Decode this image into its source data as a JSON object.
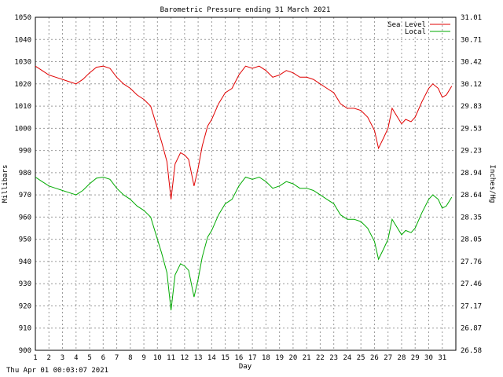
{
  "footer_timestamp": "Thu Apr 01 00:03:07 2021",
  "chart_data": {
    "type": "line",
    "title": "Barometric Pressure ending 31 March 2021",
    "xlabel": "Day",
    "ylabel_left": "Millibars",
    "ylabel_right": "Inches/Hg",
    "x_ticks": [
      "1",
      "2",
      "3",
      "4",
      "5",
      "6",
      "7",
      "8",
      "9",
      "10",
      "11",
      "12",
      "13",
      "14",
      "15",
      "16",
      "17",
      "18",
      "19",
      "20",
      "21",
      "22",
      "23",
      "24",
      "25",
      "26",
      "27",
      "28",
      "29",
      "30",
      "31"
    ],
    "y_ticks_left": [
      "900",
      "910",
      "920",
      "930",
      "940",
      "950",
      "960",
      "970",
      "980",
      "990",
      "1000",
      "1010",
      "1020",
      "1030",
      "1040",
      "1050"
    ],
    "y_ticks_right": [
      "26.58",
      "26.87",
      "27.17",
      "27.46",
      "27.76",
      "28.05",
      "28.35",
      "28.64",
      "28.94",
      "29.23",
      "29.53",
      "29.83",
      "30.12",
      "30.42",
      "30.71",
      "31.01"
    ],
    "xlim": [
      1,
      32
    ],
    "ylim": [
      900,
      1050
    ],
    "grid": true,
    "legend": "top-right",
    "series": [
      {
        "name": "Sea Level",
        "color": "#e00000",
        "x": [
          1.0,
          1.5,
          2.0,
          2.5,
          3.0,
          3.5,
          4.0,
          4.5,
          5.0,
          5.5,
          6.0,
          6.5,
          7.0,
          7.5,
          8.0,
          8.5,
          9.0,
          9.5,
          10.0,
          10.3,
          10.7,
          11.0,
          11.3,
          11.7,
          12.0,
          12.3,
          12.7,
          13.0,
          13.3,
          13.7,
          14.0,
          14.5,
          15.0,
          15.5,
          16.0,
          16.5,
          17.0,
          17.5,
          18.0,
          18.5,
          19.0,
          19.5,
          20.0,
          20.5,
          21.0,
          21.5,
          22.0,
          22.5,
          23.0,
          23.5,
          24.0,
          24.5,
          25.0,
          25.5,
          26.0,
          26.3,
          26.7,
          27.0,
          27.3,
          27.7,
          28.0,
          28.3,
          28.7,
          29.0,
          29.5,
          30.0,
          30.3,
          30.7,
          31.0,
          31.3,
          31.7
        ],
        "values": [
          1028,
          1026,
          1024,
          1023,
          1022,
          1021,
          1020,
          1022,
          1025,
          1027.5,
          1028,
          1027,
          1023,
          1020,
          1018,
          1015,
          1013,
          1010,
          1000,
          994,
          985,
          968,
          984,
          989,
          988,
          986,
          974,
          982,
          992,
          1001,
          1004,
          1011,
          1016,
          1018,
          1024,
          1028,
          1027,
          1028,
          1026,
          1023,
          1024,
          1026,
          1025,
          1023,
          1023,
          1022,
          1020,
          1018,
          1016,
          1011,
          1009,
          1009,
          1008,
          1005,
          999,
          991,
          996,
          1000,
          1009,
          1005,
          1002,
          1004,
          1003,
          1005,
          1012,
          1018,
          1020,
          1018,
          1014,
          1015,
          1019
        ]
      },
      {
        "name": "Local",
        "color": "#00aa00",
        "x": [
          1.0,
          1.5,
          2.0,
          2.5,
          3.0,
          3.5,
          4.0,
          4.5,
          5.0,
          5.5,
          6.0,
          6.5,
          7.0,
          7.5,
          8.0,
          8.5,
          9.0,
          9.5,
          10.0,
          10.3,
          10.7,
          11.0,
          11.3,
          11.7,
          12.0,
          12.3,
          12.7,
          13.0,
          13.3,
          13.7,
          14.0,
          14.5,
          15.0,
          15.5,
          16.0,
          16.5,
          17.0,
          17.5,
          18.0,
          18.5,
          19.0,
          19.5,
          20.0,
          20.5,
          21.0,
          21.5,
          22.0,
          22.5,
          23.0,
          23.5,
          24.0,
          24.5,
          25.0,
          25.5,
          26.0,
          26.3,
          26.7,
          27.0,
          27.3,
          27.7,
          28.0,
          28.3,
          28.7,
          29.0,
          29.5,
          30.0,
          30.3,
          30.7,
          31.0,
          31.3,
          31.7
        ],
        "values": [
          978,
          976,
          974,
          973,
          972,
          971,
          970,
          972,
          975,
          977.5,
          978,
          977,
          973,
          970,
          968,
          965,
          963,
          960,
          950,
          944,
          935,
          918,
          934,
          939,
          938,
          936,
          924,
          932,
          942,
          951,
          954,
          961,
          966,
          968,
          974,
          978,
          977,
          978,
          976,
          973,
          974,
          976,
          975,
          973,
          973,
          972,
          970,
          968,
          966,
          961,
          959,
          959,
          958,
          955,
          949,
          941,
          946,
          950,
          959,
          955,
          952,
          954,
          953,
          955,
          962,
          968,
          970,
          968,
          964,
          965,
          969
        ]
      }
    ]
  }
}
